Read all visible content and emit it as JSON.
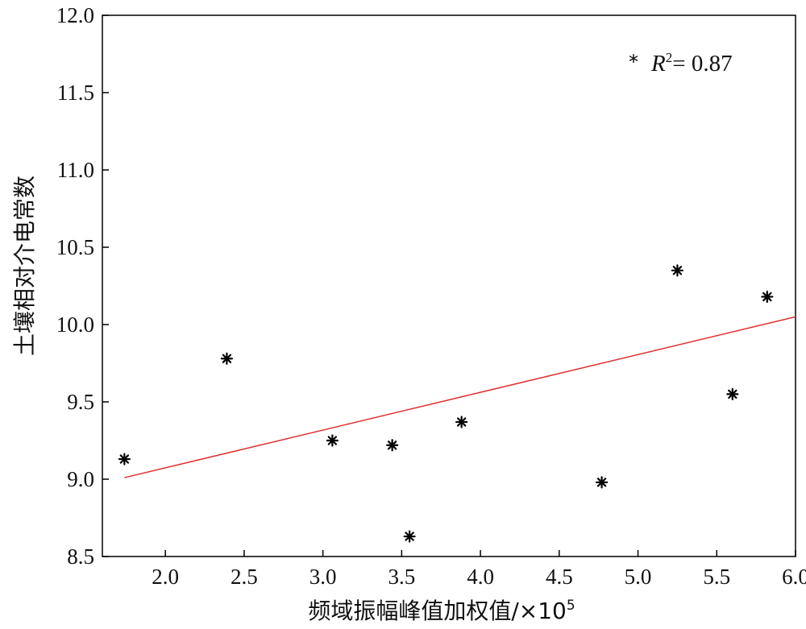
{
  "chart_data": {
    "type": "scatter",
    "title": "",
    "xlabel": "频域振幅峰值加权值/×10",
    "xlabel_exponent": "5",
    "ylabel": "土壤相对介电常数",
    "xlim": [
      1.6,
      6.0
    ],
    "ylim": [
      8.5,
      12.0
    ],
    "x_ticks": [
      "2.0",
      "2.5",
      "3.0",
      "3.5",
      "4.0",
      "4.5",
      "5.0",
      "5.5",
      "6.0"
    ],
    "y_ticks": [
      "8.5",
      "9.0",
      "9.5",
      "10.0",
      "10.5",
      "11.0",
      "11.5",
      "12.0"
    ],
    "grid": false,
    "legend_position": "top-right",
    "legend": {
      "marker": "*",
      "r_symbol": "R",
      "r_superscript": "2",
      "value_text": "= 0.87"
    },
    "colors": {
      "points": "#000000",
      "fit_line": "#e03030",
      "axes": "#000000"
    },
    "series": [
      {
        "marker": "*",
        "points": [
          {
            "x": 1.74,
            "y": 9.13
          },
          {
            "x": 2.39,
            "y": 9.78
          },
          {
            "x": 3.06,
            "y": 9.25
          },
          {
            "x": 3.44,
            "y": 9.22
          },
          {
            "x": 3.55,
            "y": 8.63
          },
          {
            "x": 3.88,
            "y": 9.37
          },
          {
            "x": 4.77,
            "y": 8.98
          },
          {
            "x": 5.25,
            "y": 10.35
          },
          {
            "x": 5.6,
            "y": 9.55
          },
          {
            "x": 5.82,
            "y": 10.18
          }
        ]
      }
    ],
    "fit_line": {
      "type": "linear",
      "x": [
        1.74,
        6.0
      ],
      "y": [
        9.01,
        10.05
      ]
    }
  }
}
